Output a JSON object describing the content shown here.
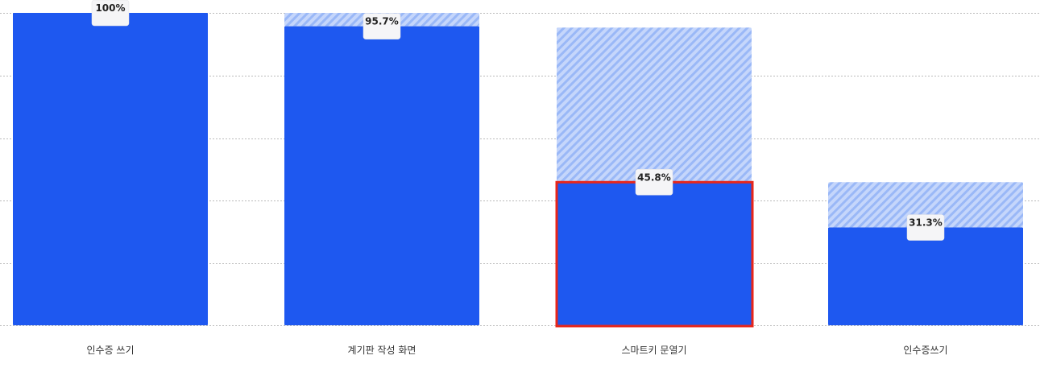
{
  "chart_data": {
    "type": "bar",
    "title": "",
    "xlabel": "",
    "ylabel": "",
    "ylim": [
      0,
      100
    ],
    "grid": true,
    "categories": [
      "인수증 쓰기",
      "계기판 작성 화면",
      "스마트키 문열기",
      "인수증쓰기"
    ],
    "series": [
      {
        "values": [
          100,
          95.7,
          45.8,
          31.3
        ]
      },
      {
        "values": [
          0,
          4.3,
          49.5,
          14.5
        ]
      }
    ],
    "data_labels": [
      "100%",
      "95.7%",
      "45.8%",
      "31.3%"
    ],
    "highlighted_category": "스마트키 문열기"
  },
  "colors": {
    "bar": "#1e58f0",
    "hatch_background": "#c5d6fb",
    "hatch_stripe": "#9ab8f7",
    "grid": "#bbbbbb",
    "highlight_border": "#e8261a",
    "label_box": "#f5f5f7"
  }
}
